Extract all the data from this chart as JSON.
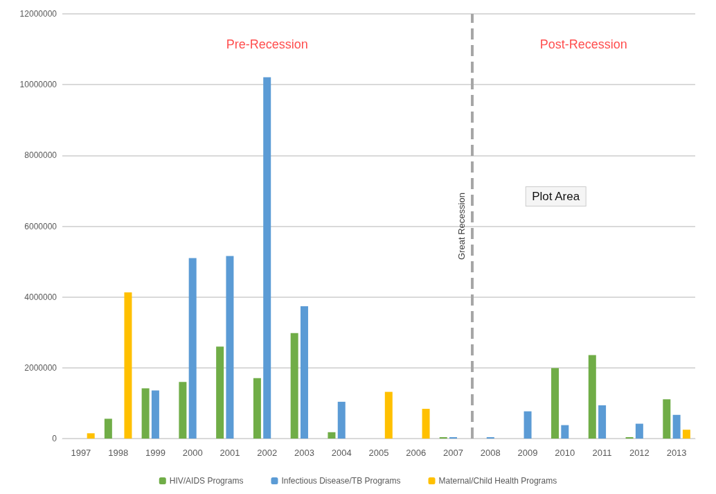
{
  "chart_data": {
    "type": "bar",
    "x": [
      1997,
      1998,
      1999,
      2000,
      2001,
      2002,
      2003,
      2004,
      2005,
      2006,
      2007,
      2008,
      2009,
      2010,
      2011,
      2012,
      2013
    ],
    "xlim": [
      1996.5,
      2013.5
    ],
    "xticks": [
      1997,
      1998,
      1999,
      2000,
      2001,
      2002,
      2003,
      2004,
      2005,
      2006,
      2007,
      2008,
      2009,
      2010,
      2011,
      2012,
      2013
    ],
    "ylim": [
      0,
      12000000
    ],
    "yticks": [
      0,
      2000000,
      4000000,
      6000000,
      8000000,
      10000000,
      12000000
    ],
    "series": [
      {
        "name": "HIV/AIDS Programs",
        "color": "#70ad47",
        "values": [
          null,
          560000,
          1420000,
          1600000,
          2600000,
          1710000,
          2980000,
          180000,
          null,
          null,
          40000,
          null,
          null,
          1990000,
          2360000,
          40000,
          1110000
        ]
      },
      {
        "name": "Infectious Disease/TB Programs",
        "color": "#5b9bd5",
        "values": [
          null,
          null,
          1360000,
          5100000,
          5160000,
          10210000,
          3740000,
          1040000,
          null,
          null,
          40000,
          40000,
          770000,
          380000,
          940000,
          420000,
          670000
        ]
      },
      {
        "name": "Maternal/Child Health Programs",
        "color": "#ffc000",
        "values": [
          150000,
          4130000,
          null,
          null,
          null,
          null,
          null,
          null,
          1320000,
          840000,
          null,
          null,
          null,
          null,
          null,
          null,
          250000
        ]
      }
    ],
    "ref_lines": [
      {
        "axis": "x",
        "value": 2007.5,
        "label": "Great Recession",
        "color": "#a6a6a6",
        "line_style": "dashed"
      }
    ],
    "annotations": [
      "Pre-Recession",
      "Post-Recession",
      "Plot Area"
    ],
    "grid": "y",
    "legend": "bottom"
  }
}
